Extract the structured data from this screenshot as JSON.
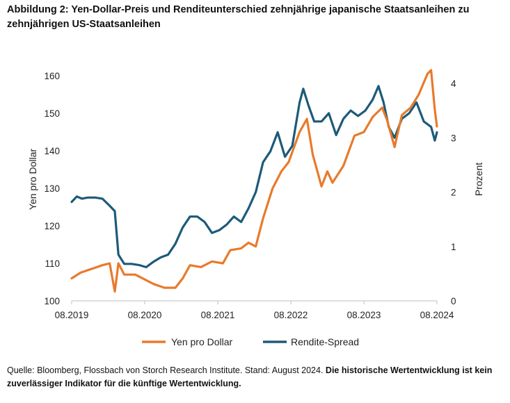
{
  "title": "Abbildung 2: Yen-Dollar-Preis und Renditeunterschied zehnjährige japanische Staatsanleihen zu zehnjährigen US-Staatsanleihen",
  "source": {
    "text": "Quelle: Bloomberg, Flossbach von Storch Research Institute. Stand: August 2024.",
    "bold": "Die historische Wertentwicklung ist kein zuverlässiger Indikator für die künftige Wertentwicklung."
  },
  "chart_data": {
    "type": "line",
    "x_ticks": [
      "08.2019",
      "08.2020",
      "08.2021",
      "08.2022",
      "08.2023",
      "08.2024"
    ],
    "xlim": [
      2019.58,
      2024.58
    ],
    "y_left": {
      "label": "Yen pro Dollar",
      "lim": [
        100,
        160
      ],
      "ticks": [
        "100",
        "110",
        "120",
        "130",
        "140",
        "150",
        "160"
      ]
    },
    "y_right": {
      "label": "Prozent",
      "lim": [
        0,
        4
      ],
      "ticks": [
        "0",
        "1",
        "2",
        "3",
        "4"
      ]
    },
    "series": [
      {
        "name": "Yen pro Dollar",
        "axis": "left",
        "color": "#E87A2C",
        "points": [
          [
            2019.58,
            106
          ],
          [
            2019.7,
            107.5
          ],
          [
            2019.85,
            108.5
          ],
          [
            2020.0,
            109.5
          ],
          [
            2020.1,
            110
          ],
          [
            2020.17,
            102.5
          ],
          [
            2020.22,
            110
          ],
          [
            2020.3,
            107
          ],
          [
            2020.45,
            107
          ],
          [
            2020.55,
            106
          ],
          [
            2020.7,
            104.5
          ],
          [
            2020.85,
            103.5
          ],
          [
            2021.0,
            103.5
          ],
          [
            2021.1,
            106
          ],
          [
            2021.2,
            109.5
          ],
          [
            2021.35,
            109
          ],
          [
            2021.5,
            110.5
          ],
          [
            2021.65,
            110
          ],
          [
            2021.75,
            113.5
          ],
          [
            2021.9,
            114
          ],
          [
            2022.0,
            115.5
          ],
          [
            2022.1,
            114.5
          ],
          [
            2022.2,
            122
          ],
          [
            2022.33,
            130
          ],
          [
            2022.45,
            134.5
          ],
          [
            2022.55,
            137
          ],
          [
            2022.7,
            145
          ],
          [
            2022.8,
            148.5
          ],
          [
            2022.88,
            139
          ],
          [
            2023.0,
            130.5
          ],
          [
            2023.08,
            134.5
          ],
          [
            2023.15,
            131.5
          ],
          [
            2023.3,
            136
          ],
          [
            2023.45,
            144
          ],
          [
            2023.58,
            145
          ],
          [
            2023.7,
            149
          ],
          [
            2023.83,
            151.5
          ],
          [
            2023.9,
            148
          ],
          [
            2024.0,
            141
          ],
          [
            2024.1,
            149.5
          ],
          [
            2024.22,
            151.5
          ],
          [
            2024.33,
            155
          ],
          [
            2024.45,
            160.5
          ],
          [
            2024.5,
            161.5
          ],
          [
            2024.55,
            151
          ],
          [
            2024.58,
            146.5
          ]
        ]
      },
      {
        "name": "Rendite-Spread",
        "axis": "right",
        "color": "#1C5A79",
        "points": [
          [
            2019.58,
            1.82
          ],
          [
            2019.65,
            1.92
          ],
          [
            2019.72,
            1.88
          ],
          [
            2019.8,
            1.9
          ],
          [
            2019.9,
            1.9
          ],
          [
            2020.0,
            1.88
          ],
          [
            2020.1,
            1.75
          ],
          [
            2020.17,
            1.65
          ],
          [
            2020.22,
            0.85
          ],
          [
            2020.3,
            0.68
          ],
          [
            2020.4,
            0.68
          ],
          [
            2020.5,
            0.66
          ],
          [
            2020.6,
            0.62
          ],
          [
            2020.7,
            0.72
          ],
          [
            2020.8,
            0.8
          ],
          [
            2020.9,
            0.85
          ],
          [
            2021.0,
            1.05
          ],
          [
            2021.1,
            1.35
          ],
          [
            2021.2,
            1.55
          ],
          [
            2021.3,
            1.55
          ],
          [
            2021.4,
            1.45
          ],
          [
            2021.5,
            1.25
          ],
          [
            2021.6,
            1.3
          ],
          [
            2021.7,
            1.4
          ],
          [
            2021.8,
            1.55
          ],
          [
            2021.9,
            1.45
          ],
          [
            2022.0,
            1.7
          ],
          [
            2022.1,
            2.0
          ],
          [
            2022.2,
            2.55
          ],
          [
            2022.3,
            2.75
          ],
          [
            2022.4,
            3.1
          ],
          [
            2022.5,
            2.65
          ],
          [
            2022.6,
            2.85
          ],
          [
            2022.7,
            3.65
          ],
          [
            2022.75,
            3.9
          ],
          [
            2022.82,
            3.6
          ],
          [
            2022.9,
            3.3
          ],
          [
            2023.0,
            3.3
          ],
          [
            2023.1,
            3.45
          ],
          [
            2023.2,
            3.05
          ],
          [
            2023.3,
            3.35
          ],
          [
            2023.4,
            3.5
          ],
          [
            2023.5,
            3.4
          ],
          [
            2023.6,
            3.5
          ],
          [
            2023.7,
            3.7
          ],
          [
            2023.78,
            3.95
          ],
          [
            2023.85,
            3.65
          ],
          [
            2023.92,
            3.2
          ],
          [
            2024.0,
            3.0
          ],
          [
            2024.1,
            3.35
          ],
          [
            2024.2,
            3.45
          ],
          [
            2024.3,
            3.65
          ],
          [
            2024.4,
            3.3
          ],
          [
            2024.5,
            3.2
          ],
          [
            2024.55,
            2.95
          ],
          [
            2024.58,
            3.1
          ]
        ]
      }
    ],
    "legend": "bottom"
  }
}
